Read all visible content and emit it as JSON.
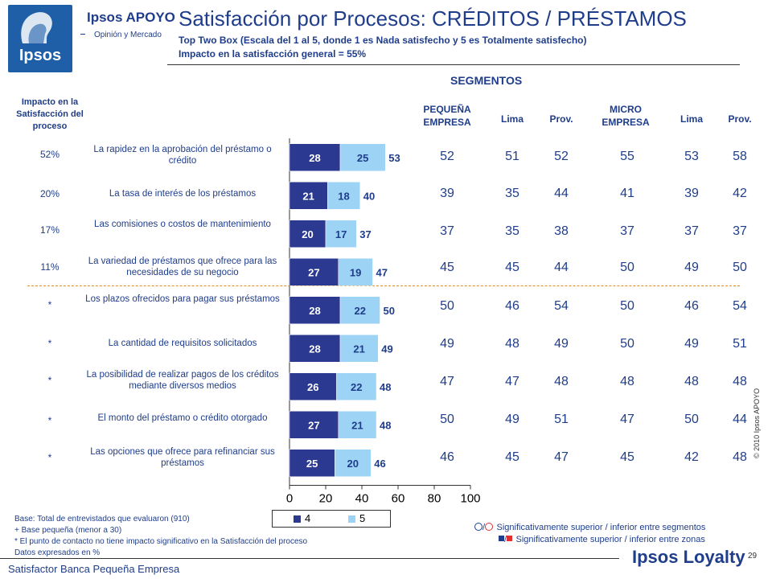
{
  "header": {
    "brand": "Ipsos",
    "partner_title": "Ipsos APOYO",
    "partner_subtitle": "Opinión y Mercado",
    "title": "Satisfacción por Procesos: CRÉDITOS / PRÉSTAMOS",
    "subtitle": "Top Two Box (Escala del 1 al 5, donde 1 es Nada satisfecho y 5 es Totalmente satisfecho)",
    "impact_line": "Impacto en la satisfacción general = 55%"
  },
  "columns": {
    "segments_heading": "SEGMENTOS",
    "impact_heading": "Impacto en la Satisfacción del proceso",
    "pequena": "PEQUEÑA EMPRESA",
    "lima1": "Lima",
    "prov1": "Prov.",
    "micro": "MICRO EMPRESA",
    "lima2": "Lima",
    "prov2": "Prov."
  },
  "rows": [
    {
      "impact": "52%",
      "label": "La rapidez en la aprobación del préstamo o crédito",
      "segments": [
        "52",
        "51",
        "52",
        "55",
        "53",
        "58"
      ]
    },
    {
      "impact": "20%",
      "label": "La tasa de interés de los préstamos",
      "segments": [
        "39",
        "35",
        "44",
        "41",
        "39",
        "42"
      ]
    },
    {
      "impact": "17%",
      "label": "Las comisiones o costos de mantenimiento",
      "segments": [
        "37",
        "35",
        "38",
        "37",
        "37",
        "37"
      ]
    },
    {
      "impact": "11%",
      "label": "La variedad de préstamos que ofrece para las necesidades de su negocio",
      "segments": [
        "45",
        "45",
        "44",
        "50",
        "49",
        "50"
      ]
    },
    {
      "impact": "*",
      "label": "Los plazos ofrecidos para pagar sus préstamos",
      "segments": [
        "50",
        "46",
        "54",
        "50",
        "46",
        "54"
      ]
    },
    {
      "impact": "*",
      "label": "La cantidad de requisitos solicitados",
      "segments": [
        "49",
        "48",
        "49",
        "50",
        "49",
        "51"
      ]
    },
    {
      "impact": "*",
      "label": "La posibilidad de realizar pagos de los créditos mediante diversos medios",
      "segments": [
        "47",
        "47",
        "48",
        "48",
        "48",
        "48"
      ]
    },
    {
      "impact": "*",
      "label": "El monto del préstamo o crédito otorgado",
      "segments": [
        "50",
        "49",
        "51",
        "47",
        "50",
        "44"
      ]
    },
    {
      "impact": "*",
      "label": "Las opciones que ofrece para refinanciar sus préstamos",
      "segments": [
        "46",
        "45",
        "47",
        "45",
        "42",
        "48"
      ]
    }
  ],
  "chart_data": {
    "type": "bar",
    "stacked": true,
    "orientation": "horizontal",
    "categories": [
      "La rapidez en la aprobación del préstamo o crédito",
      "La tasa de interés de los préstamos",
      "Las comisiones o costos de mantenimiento",
      "La variedad de préstamos que ofrece para las necesidades de su negocio",
      "Los plazos ofrecidos para pagar sus préstamos",
      "La cantidad de requisitos solicitados",
      "La posibilidad de realizar pagos de los créditos mediante diversos medios",
      "El monto del préstamo o crédito otorgado",
      "Las opciones que ofrece para refinanciar sus préstamos"
    ],
    "series": [
      {
        "name": "4",
        "values": [
          28,
          21,
          20,
          27,
          28,
          28,
          26,
          27,
          25
        ],
        "color": "#2b3990"
      },
      {
        "name": "5",
        "values": [
          25,
          18,
          17,
          19,
          22,
          21,
          22,
          21,
          20
        ],
        "color": "#9dd3f5"
      }
    ],
    "totals": [
      53,
      40,
      37,
      47,
      50,
      49,
      48,
      48,
      46
    ],
    "xlim": [
      0,
      100
    ],
    "xticks": [
      "0",
      "20",
      "40",
      "60",
      "80",
      "100"
    ],
    "legend": "bottom"
  },
  "legend": {
    "item1": "4",
    "item2": "5"
  },
  "footnotes": {
    "line1": "Base: Total de entrevistados que evaluaron (910)",
    "line2": "+ Base pequeña (menor a 30)",
    "line3": "* El punto de contacto no tiene impacto significativo en la Satisfacción del proceso",
    "line4": "Datos expresados en %"
  },
  "significance": {
    "line1": "Significativamente superior / inferior entre segmentos",
    "line2": "Significativamente superior / inferior entre zonas"
  },
  "footer": {
    "left": "Satisfactor Banca Pequeña Empresa",
    "page": "29",
    "brand": "Ipsos Loyalty",
    "copyright": "© 2010 Ipsos APOYO"
  }
}
